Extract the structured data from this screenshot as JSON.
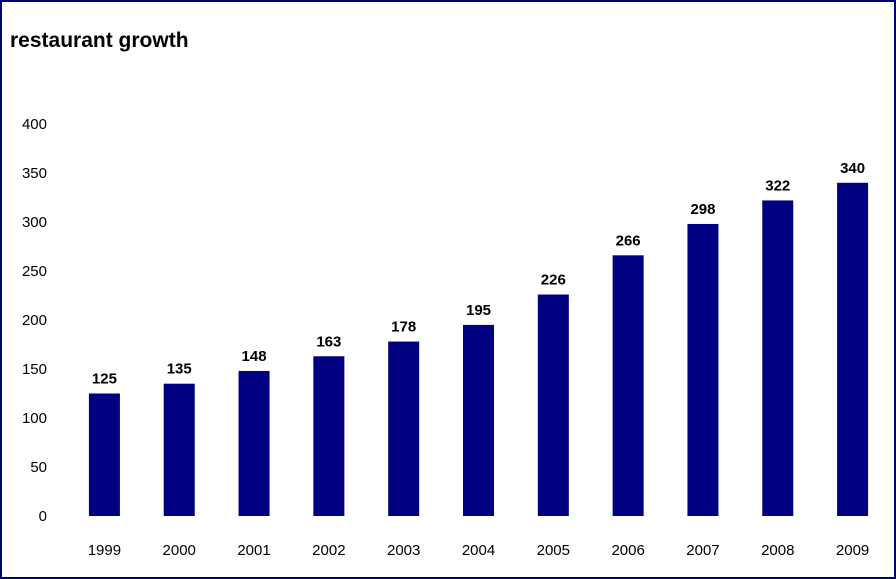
{
  "chart_data": {
    "type": "bar",
    "title": "restaurant growth",
    "xlabel": "",
    "ylabel": "",
    "categories": [
      "1999",
      "2000",
      "2001",
      "2002",
      "2003",
      "2004",
      "2005",
      "2006",
      "2007",
      "2008",
      "2009"
    ],
    "values": [
      125,
      135,
      148,
      163,
      178,
      195,
      226,
      266,
      298,
      322,
      340
    ],
    "ylim": [
      0,
      400
    ],
    "yticks": [
      0,
      50,
      100,
      150,
      200,
      250,
      300,
      350,
      400
    ],
    "grid": false,
    "legend": "none",
    "data_labels": true,
    "bar_color": "#000080",
    "frame_color": "#00007a"
  }
}
